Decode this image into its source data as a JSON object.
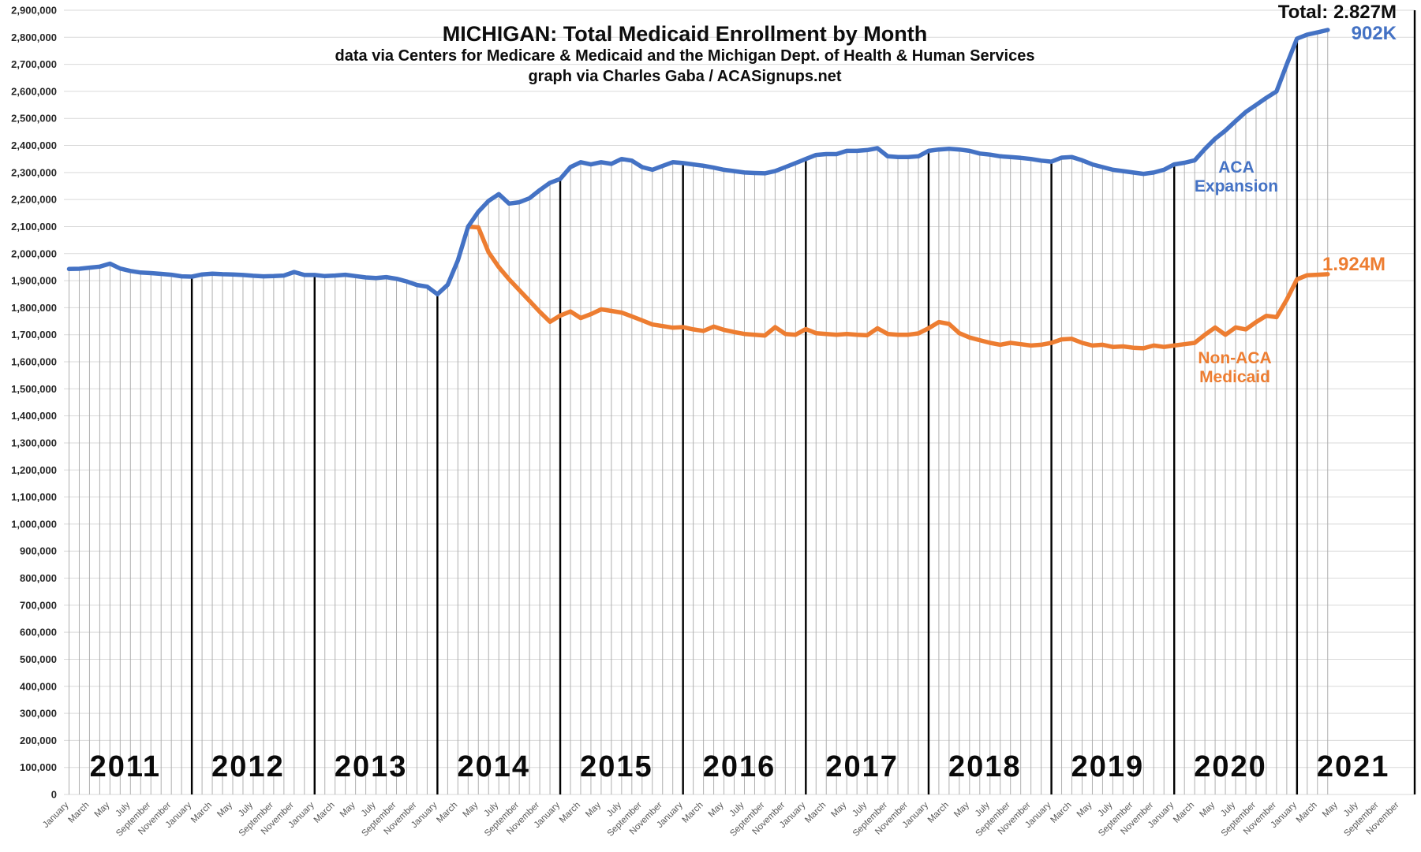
{
  "header": {
    "title": "MICHIGAN: Total Medicaid Enrollment by Month",
    "subtitle": "data via Centers for Medicare & Medicaid and the Michigan Dept. of Health & Human Services",
    "credit": "graph via Charles Gaba / ACASignups.net"
  },
  "annotations": {
    "total": "Total: 2.827M",
    "expansion_value": "902K",
    "non_aca_value": "1.924M",
    "expansion_label_line1": "ACA",
    "expansion_label_line2": "Expansion",
    "non_aca_label_line1": "Non-ACA",
    "non_aca_label_line2": "Medicaid"
  },
  "colors": {
    "expansion_blue": "#4472C4",
    "non_aca_orange": "#ED7D31",
    "gridline": "#D9D9D9",
    "dropline": "#AFAFAF",
    "year_line": "#000000",
    "axis_text": "#262626",
    "month_text": "#595959",
    "year_text": "#0a0a0a"
  },
  "chart_data": {
    "type": "line",
    "title": "MICHIGAN: Total Medicaid Enrollment by Month",
    "x_start": "January 2011",
    "x_end_data": "April 2021",
    "x_axis_months_total": 132,
    "x_axis_years": [
      2011,
      2012,
      2013,
      2014,
      2015,
      2016,
      2017,
      2018,
      2019,
      2020,
      2021
    ],
    "month_tick_labels": [
      "January",
      "March",
      "May",
      "July",
      "September",
      "November"
    ],
    "ylim": [
      0,
      2900000
    ],
    "ytick_step": 100000,
    "grid": true,
    "drop_lines": true,
    "legend_position": "inline-annotations",
    "values_unit": "thousands of enrollees",
    "series": [
      {
        "name": "Total Medicaid incl. ACA Expansion",
        "color_key": "expansion_blue",
        "start_month_index": 0,
        "end_label": "902K",
        "values_thousands": [
          1943,
          1944,
          1948,
          1952,
          1963,
          1945,
          1936,
          1930,
          1928,
          1925,
          1922,
          1916,
          1915,
          1923,
          1926,
          1924,
          1923,
          1921,
          1918,
          1916,
          1917,
          1919,
          1932,
          1921,
          1921,
          1917,
          1919,
          1922,
          1917,
          1912,
          1910,
          1913,
          1907,
          1897,
          1884,
          1878,
          1850,
          1885,
          1975,
          2100,
          2155,
          2195,
          2220,
          2185,
          2190,
          2205,
          2235,
          2262,
          2276,
          2320,
          2338,
          2330,
          2338,
          2332,
          2350,
          2344,
          2320,
          2310,
          2324,
          2338,
          2335,
          2330,
          2325,
          2318,
          2310,
          2305,
          2300,
          2298,
          2297,
          2305,
          2320,
          2335,
          2350,
          2365,
          2368,
          2368,
          2380,
          2380,
          2383,
          2390,
          2360,
          2357,
          2357,
          2360,
          2380,
          2385,
          2388,
          2385,
          2380,
          2370,
          2366,
          2360,
          2357,
          2354,
          2350,
          2344,
          2340,
          2355,
          2357,
          2345,
          2330,
          2320,
          2310,
          2305,
          2300,
          2295,
          2300,
          2310,
          2330,
          2336,
          2345,
          2387,
          2425,
          2455,
          2490,
          2524,
          2550,
          2576,
          2600,
          2700,
          2795,
          2810,
          2818,
          2827
        ]
      },
      {
        "name": "Non-ACA Medicaid",
        "color_key": "non_aca_orange",
        "start_month_index": 39,
        "end_label": "1.924M",
        "values_thousands": [
          2100,
          2097,
          2005,
          1950,
          1905,
          1865,
          1825,
          1785,
          1748,
          1771,
          1786,
          1762,
          1776,
          1794,
          1788,
          1782,
          1768,
          1753,
          1738,
          1732,
          1726,
          1728,
          1720,
          1714,
          1730,
          1718,
          1710,
          1703,
          1700,
          1697,
          1728,
          1703,
          1700,
          1721,
          1706,
          1703,
          1700,
          1703,
          1700,
          1698,
          1724,
          1703,
          1700,
          1700,
          1705,
          1724,
          1747,
          1740,
          1706,
          1690,
          1680,
          1670,
          1663,
          1670,
          1665,
          1660,
          1663,
          1670,
          1683,
          1685,
          1670,
          1660,
          1663,
          1655,
          1657,
          1652,
          1650,
          1660,
          1655,
          1660,
          1665,
          1670,
          1700,
          1727,
          1700,
          1727,
          1720,
          1747,
          1770,
          1765,
          1830,
          1905,
          1920,
          1922,
          1924
        ]
      }
    ]
  }
}
